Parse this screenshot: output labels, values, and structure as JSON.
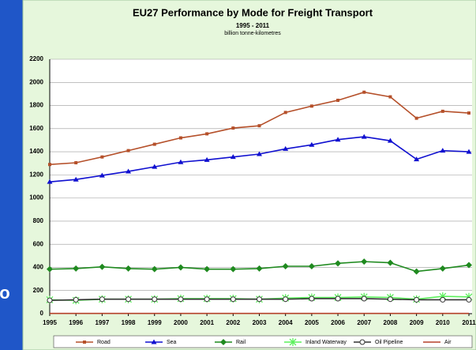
{
  "slide_fragment": "o",
  "chart_data": {
    "type": "line",
    "title": "EU27 Performance by Mode for Freight Transport",
    "subtitle": "1995 - 2011",
    "unit_label": "billion tonne-kilometres",
    "x": [
      1995,
      1996,
      1997,
      1998,
      1999,
      2000,
      2001,
      2002,
      2003,
      2004,
      2005,
      2006,
      2007,
      2008,
      2009,
      2010,
      2011
    ],
    "xlim": [
      1995,
      2011
    ],
    "ylim": [
      0,
      2200
    ],
    "yticks": [
      0,
      200,
      400,
      600,
      800,
      1000,
      1200,
      1400,
      1600,
      1800,
      2000,
      2200
    ],
    "grid": true,
    "legend": "bottom",
    "series": [
      {
        "name": "Road",
        "color": "#b5502a",
        "marker": "square",
        "values": [
          1290,
          1305,
          1355,
          1410,
          1465,
          1520,
          1555,
          1605,
          1625,
          1740,
          1795,
          1845,
          1915,
          1875,
          1690,
          1750,
          1735
        ]
      },
      {
        "name": "Sea",
        "color": "#1010d0",
        "marker": "triangle",
        "values": [
          1140,
          1160,
          1195,
          1230,
          1270,
          1310,
          1330,
          1355,
          1380,
          1425,
          1460,
          1505,
          1530,
          1495,
          1335,
          1410,
          1400
        ]
      },
      {
        "name": "Rail",
        "color": "#1f8a1f",
        "marker": "diamond",
        "values": [
          385,
          390,
          405,
          390,
          385,
          400,
          385,
          385,
          390,
          410,
          410,
          435,
          450,
          440,
          365,
          390,
          420
        ]
      },
      {
        "name": "Inland Waterway",
        "color": "#5cf05c",
        "marker": "cross",
        "values": [
          120,
          115,
          125,
          125,
          125,
          130,
          130,
          130,
          125,
          135,
          140,
          140,
          145,
          140,
          125,
          150,
          145
        ]
      },
      {
        "name": "Oil Pipeline",
        "color": "#333333",
        "marker": "circle",
        "values": [
          115,
          120,
          125,
          125,
          125,
          125,
          125,
          125,
          125,
          125,
          130,
          130,
          130,
          125,
          120,
          120,
          120
        ]
      },
      {
        "name": "Air",
        "color": "#b5402a",
        "marker": "none",
        "values": [
          2,
          2,
          2,
          2,
          2,
          2,
          2,
          2,
          2,
          2,
          2,
          2,
          2,
          2,
          2,
          2,
          2
        ]
      }
    ]
  }
}
